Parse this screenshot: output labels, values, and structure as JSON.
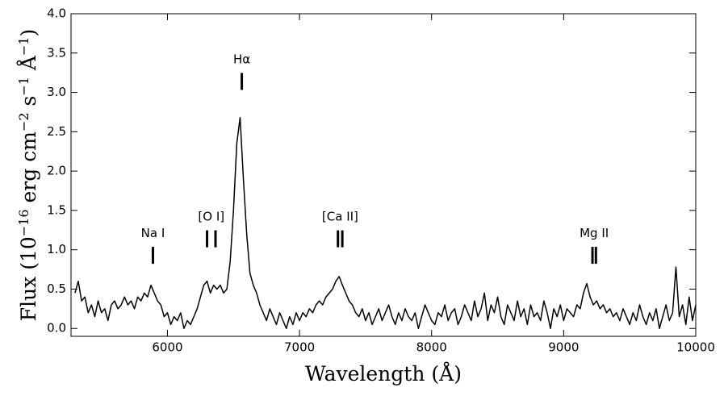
{
  "chart_data": {
    "type": "line",
    "xlabel": "Wavelength (Å)",
    "ylabel": [
      "Flux (10",
      "−16",
      " erg cm",
      "−2",
      " s",
      "−1",
      " Å",
      "−1",
      ")"
    ],
    "color": "#000000",
    "xlim": [
      5270,
      10000
    ],
    "ylim": [
      -0.1,
      4.0
    ],
    "xticks": [
      6000,
      7000,
      8000,
      9000,
      10000
    ],
    "yticks": [
      {
        "value": 0,
        "label": "0.0"
      },
      0.5,
      {
        "value": 1,
        "label": "1.0"
      },
      1.5,
      {
        "value": 2,
        "label": "2.0"
      },
      2.5,
      {
        "value": 3,
        "label": "3.0"
      },
      3.5,
      {
        "value": 4,
        "label": "4.0"
      }
    ],
    "annotations": [
      {
        "text": "Na I",
        "wavelengths": [
          5890
        ],
        "y": 1.16
      },
      {
        "text": "[O I]",
        "wavelengths": [
          6300,
          6364
        ],
        "y": 1.37
      },
      {
        "text": "Hα",
        "wavelengths": [
          6563
        ],
        "y": 3.37
      },
      {
        "text": "[Ca II]",
        "wavelengths": [
          7291,
          7324
        ],
        "y": 1.37
      },
      {
        "text": "Mg II",
        "wavelengths": [
          9218,
          9244
        ],
        "y": 1.16
      }
    ],
    "x": [
      5300,
      5325,
      5350,
      5375,
      5400,
      5425,
      5450,
      5475,
      5500,
      5525,
      5550,
      5575,
      5600,
      5625,
      5650,
      5675,
      5700,
      5725,
      5750,
      5775,
      5800,
      5825,
      5850,
      5875,
      5900,
      5925,
      5950,
      5975,
      6000,
      6025,
      6050,
      6075,
      6100,
      6125,
      6150,
      6175,
      6200,
      6225,
      6250,
      6275,
      6300,
      6325,
      6350,
      6375,
      6400,
      6425,
      6450,
      6475,
      6500,
      6525,
      6550,
      6575,
      6600,
      6625,
      6650,
      6675,
      6700,
      6725,
      6750,
      6775,
      6800,
      6825,
      6850,
      6875,
      6900,
      6925,
      6950,
      6975,
      7000,
      7025,
      7050,
      7075,
      7100,
      7125,
      7150,
      7175,
      7200,
      7225,
      7250,
      7275,
      7300,
      7325,
      7350,
      7375,
      7400,
      7425,
      7450,
      7475,
      7500,
      7525,
      7550,
      7575,
      7600,
      7625,
      7650,
      7675,
      7700,
      7725,
      7750,
      7775,
      7800,
      7825,
      7850,
      7875,
      7900,
      7925,
      7950,
      7975,
      8000,
      8025,
      8050,
      8075,
      8100,
      8125,
      8150,
      8175,
      8200,
      8225,
      8250,
      8275,
      8300,
      8325,
      8350,
      8375,
      8400,
      8425,
      8450,
      8475,
      8500,
      8525,
      8550,
      8575,
      8600,
      8625,
      8650,
      8675,
      8700,
      8725,
      8750,
      8775,
      8800,
      8825,
      8850,
      8875,
      8900,
      8925,
      8950,
      8975,
      9000,
      9025,
      9050,
      9075,
      9100,
      9125,
      9150,
      9175,
      9200,
      9225,
      9250,
      9275,
      9300,
      9325,
      9350,
      9375,
      9400,
      9425,
      9450,
      9475,
      9500,
      9525,
      9550,
      9575,
      9600,
      9625,
      9650,
      9675,
      9700,
      9725,
      9750,
      9775,
      9800,
      9825,
      9850,
      9875,
      9900,
      9925,
      9950,
      9975,
      10000
    ],
    "values": [
      0.45,
      0.6,
      0.35,
      0.4,
      0.2,
      0.3,
      0.15,
      0.35,
      0.2,
      0.25,
      0.1,
      0.3,
      0.35,
      0.25,
      0.3,
      0.4,
      0.3,
      0.35,
      0.25,
      0.4,
      0.35,
      0.45,
      0.4,
      0.55,
      0.45,
      0.35,
      0.3,
      0.15,
      0.2,
      0.05,
      0.15,
      0.1,
      0.2,
      0.0,
      0.1,
      0.05,
      0.15,
      0.25,
      0.4,
      0.55,
      0.6,
      0.45,
      0.55,
      0.5,
      0.55,
      0.45,
      0.5,
      0.85,
      1.5,
      2.35,
      2.68,
      1.9,
      1.2,
      0.7,
      0.55,
      0.45,
      0.3,
      0.2,
      0.1,
      0.25,
      0.15,
      0.05,
      0.2,
      0.1,
      0.0,
      0.15,
      0.05,
      0.2,
      0.1,
      0.2,
      0.15,
      0.25,
      0.2,
      0.3,
      0.35,
      0.3,
      0.4,
      0.45,
      0.5,
      0.6,
      0.66,
      0.55,
      0.45,
      0.35,
      0.3,
      0.2,
      0.15,
      0.25,
      0.1,
      0.2,
      0.05,
      0.15,
      0.25,
      0.1,
      0.2,
      0.3,
      0.15,
      0.05,
      0.2,
      0.1,
      0.25,
      0.15,
      0.1,
      0.2,
      0.0,
      0.15,
      0.3,
      0.2,
      0.1,
      0.05,
      0.2,
      0.15,
      0.3,
      0.1,
      0.2,
      0.25,
      0.05,
      0.15,
      0.3,
      0.2,
      0.1,
      0.35,
      0.15,
      0.25,
      0.45,
      0.1,
      0.3,
      0.2,
      0.4,
      0.15,
      0.05,
      0.3,
      0.2,
      0.1,
      0.35,
      0.15,
      0.25,
      0.05,
      0.3,
      0.15,
      0.2,
      0.1,
      0.35,
      0.2,
      0.0,
      0.25,
      0.15,
      0.3,
      0.1,
      0.25,
      0.2,
      0.15,
      0.3,
      0.25,
      0.45,
      0.57,
      0.4,
      0.3,
      0.35,
      0.25,
      0.3,
      0.2,
      0.25,
      0.15,
      0.2,
      0.1,
      0.25,
      0.15,
      0.05,
      0.2,
      0.1,
      0.3,
      0.15,
      0.05,
      0.2,
      0.1,
      0.25,
      0.0,
      0.15,
      0.3,
      0.1,
      0.2,
      0.78,
      0.15,
      0.3,
      0.05,
      0.4,
      0.1,
      0.3
    ]
  }
}
